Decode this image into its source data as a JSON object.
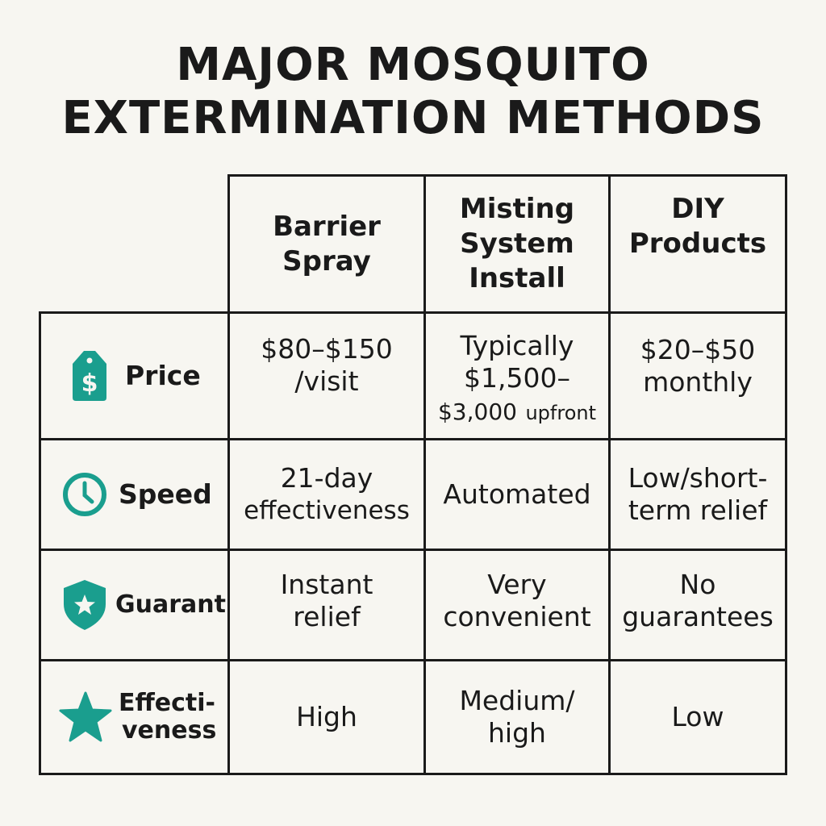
{
  "title": [
    "MAJOR MOSQUITO",
    "EXTERMINATION METHODS"
  ],
  "colors": {
    "accent": "#1a9e8e",
    "text": "#1a1a1a",
    "background": "#f7f6f1"
  },
  "columns": [
    [
      "Barrier",
      "Spray"
    ],
    [
      "Misting",
      "System",
      "Install"
    ],
    [
      "DIY",
      "Products"
    ]
  ],
  "rows": [
    {
      "icon": "price-tag-dollar-icon",
      "label": [
        "Price"
      ],
      "cells": [
        [
          "$80–$150",
          "/visit"
        ],
        [
          "Typically",
          "$1,500–",
          "$3,000",
          "upfront"
        ],
        [
          "$20–$50",
          "monthly"
        ]
      ]
    },
    {
      "icon": "clock-icon",
      "label": [
        "Speed"
      ],
      "cells": [
        [
          "21-day",
          "effectiveness"
        ],
        [
          "Automated"
        ],
        [
          "Low/short-",
          "term relief"
        ]
      ]
    },
    {
      "icon": "shield-star-icon",
      "label": [
        "Guarant"
      ],
      "cells": [
        [
          "Instant",
          "relief"
        ],
        [
          "Very",
          "convenient"
        ],
        [
          "No",
          "guarantees"
        ]
      ]
    },
    {
      "icon": "star-icon",
      "label": [
        "Effecti-",
        "veness"
      ],
      "cells": [
        [
          "High"
        ],
        [
          "Medium/",
          "high"
        ],
        [
          "Low"
        ]
      ]
    }
  ]
}
